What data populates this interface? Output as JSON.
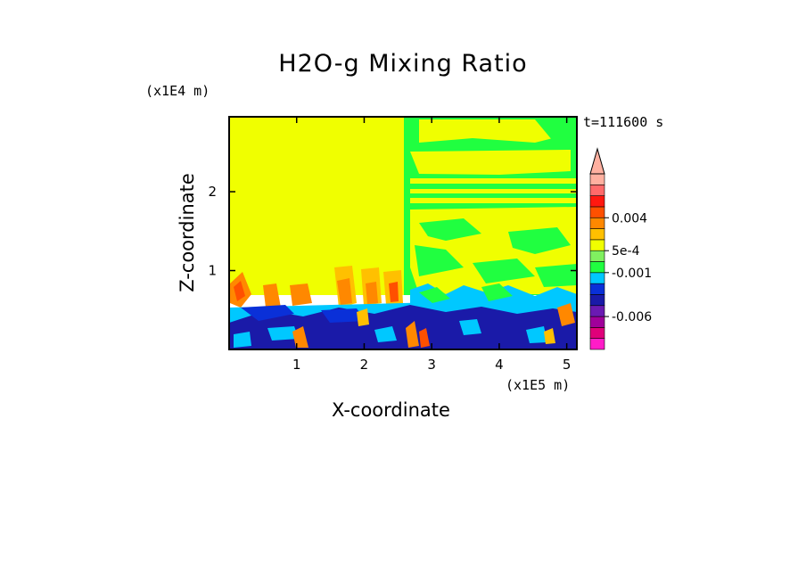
{
  "chart_data": {
    "type": "heatmap",
    "title": "H2O-g Mixing Ratio",
    "xlabel": "X-coordinate",
    "ylabel": "Z-coordinate",
    "x_unit": "(x1E5 m)",
    "y_unit": "(x1E4 m)",
    "timestamp": "t=111600 s",
    "xlim": [
      0,
      5.15
    ],
    "ylim": [
      0,
      2.95
    ],
    "x_ticks": [
      1,
      2,
      3,
      4,
      5
    ],
    "y_ticks": [
      1,
      2
    ],
    "x_tick_labels": [
      "1",
      "2",
      "3",
      "4",
      "5"
    ],
    "y_tick_labels": [
      "1",
      "2"
    ],
    "colorbar": {
      "colors": [
        "#ff1cc8",
        "#e0007a",
        "#a0009a",
        "#6a1ab2",
        "#1a1aa8",
        "#0a30d8",
        "#00c8ff",
        "#20ff40",
        "#80f060",
        "#f0ff00",
        "#ffc000",
        "#ff8800",
        "#ff5000",
        "#ff1810",
        "#ff6a6a",
        "#ffb0a0"
      ],
      "labels": [
        {
          "text": "-0.006",
          "index": 3
        },
        {
          "text": "-0.001",
          "index": 7
        },
        {
          "text": "5e-4",
          "index": 9
        },
        {
          "text": "0.004",
          "index": 12
        }
      ]
    },
    "regions": [
      {
        "name": "upper-left",
        "x": [
          0,
          2.6
        ],
        "z": [
          0.9,
          2.95
        ],
        "level": "yellow"
      },
      {
        "name": "upper-right",
        "x": [
          2.6,
          5.15
        ],
        "z": [
          0.9,
          2.95
        ],
        "level": "green-yellow mix"
      },
      {
        "name": "mid-band",
        "x": [
          0,
          5.15
        ],
        "z": [
          0.55,
          0.9
        ],
        "level": "orange/cyan"
      },
      {
        "name": "boundary-layer",
        "x": [
          0,
          5.15
        ],
        "z": [
          0,
          0.55
        ],
        "level": "blue"
      }
    ],
    "grid": false,
    "legend": "right colorbar"
  }
}
